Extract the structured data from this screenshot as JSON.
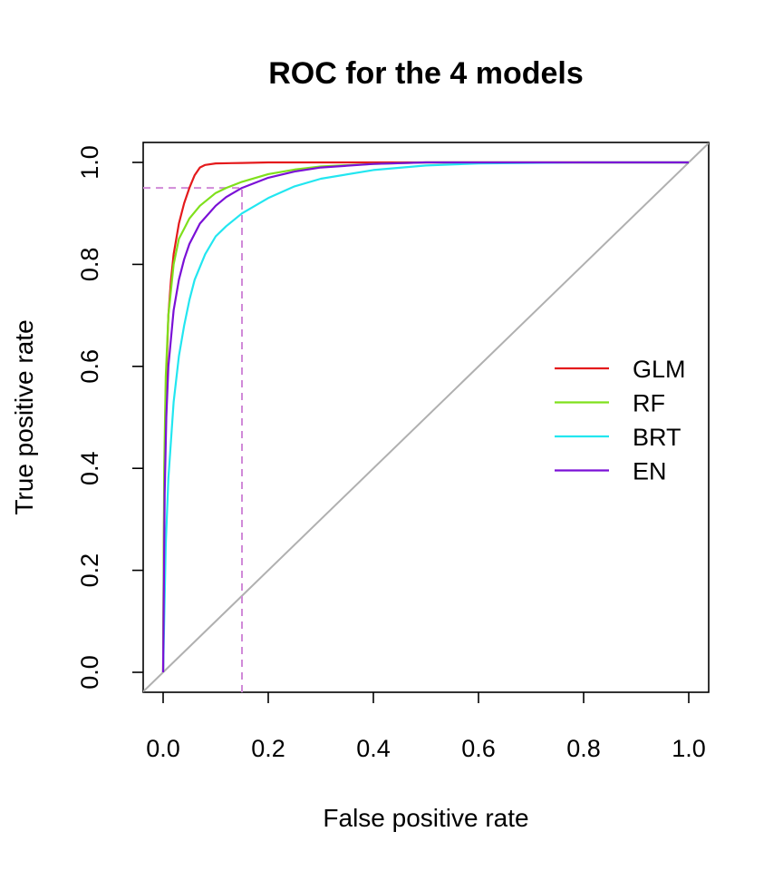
{
  "chart_data": {
    "type": "line",
    "title": "ROC for the 4 models",
    "xlabel": "False positive rate",
    "ylabel": "True positive rate",
    "xlim": [
      0,
      1
    ],
    "ylim": [
      0,
      1
    ],
    "x_ticks": [
      "0.0",
      "0.2",
      "0.4",
      "0.6",
      "0.8",
      "1.0"
    ],
    "y_ticks": [
      "0.0",
      "0.2",
      "0.4",
      "0.6",
      "0.8",
      "1.0"
    ],
    "legend_position": "right",
    "series": [
      {
        "name": "GLM",
        "color": "#e41a1c",
        "x": [
          0,
          0.002,
          0.005,
          0.01,
          0.015,
          0.02,
          0.03,
          0.04,
          0.05,
          0.06,
          0.07,
          0.08,
          0.1,
          0.15,
          0.2,
          0.3,
          0.5,
          1.0
        ],
        "y": [
          0,
          0.35,
          0.55,
          0.7,
          0.77,
          0.82,
          0.88,
          0.92,
          0.95,
          0.975,
          0.99,
          0.995,
          0.998,
          0.999,
          1.0,
          1.0,
          1.0,
          1.0
        ]
      },
      {
        "name": "RF",
        "color": "#7fe01c",
        "x": [
          0,
          0.002,
          0.005,
          0.01,
          0.02,
          0.03,
          0.04,
          0.05,
          0.07,
          0.1,
          0.12,
          0.15,
          0.2,
          0.25,
          0.3,
          0.4,
          0.5,
          1.0
        ],
        "y": [
          0,
          0.4,
          0.58,
          0.7,
          0.8,
          0.85,
          0.87,
          0.89,
          0.915,
          0.94,
          0.95,
          0.962,
          0.977,
          0.986,
          0.992,
          0.997,
          1.0,
          1.0
        ]
      },
      {
        "name": "BRT",
        "color": "#22e6f0",
        "x": [
          0,
          0.005,
          0.01,
          0.02,
          0.03,
          0.04,
          0.05,
          0.06,
          0.08,
          0.1,
          0.12,
          0.15,
          0.2,
          0.25,
          0.3,
          0.4,
          0.5,
          0.6,
          0.8,
          1.0
        ],
        "y": [
          0,
          0.25,
          0.38,
          0.53,
          0.62,
          0.68,
          0.73,
          0.77,
          0.82,
          0.855,
          0.875,
          0.9,
          0.93,
          0.953,
          0.968,
          0.985,
          0.994,
          0.998,
          1.0,
          1.0
        ]
      },
      {
        "name": "EN",
        "color": "#7a10d6",
        "x": [
          0,
          0.003,
          0.006,
          0.01,
          0.02,
          0.03,
          0.04,
          0.05,
          0.07,
          0.1,
          0.12,
          0.15,
          0.2,
          0.25,
          0.3,
          0.4,
          0.5,
          0.6,
          1.0
        ],
        "y": [
          0,
          0.35,
          0.5,
          0.6,
          0.71,
          0.77,
          0.81,
          0.84,
          0.88,
          0.915,
          0.932,
          0.95,
          0.97,
          0.982,
          0.99,
          0.997,
          1.0,
          1.0,
          1.0
        ]
      }
    ],
    "diagonal": {
      "color": "#b0b0b0"
    },
    "threshold_marker": {
      "x": 0.15,
      "y": 0.95,
      "color": "#d08ad8"
    }
  }
}
